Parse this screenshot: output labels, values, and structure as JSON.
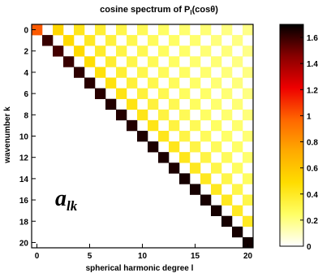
{
  "chart_data": {
    "type": "heatmap",
    "title": "cosine spectrum of P_l(cosθ)",
    "title_parts": {
      "before": "cosine spectrum of P",
      "sub": "l",
      "after": "(cosθ)"
    },
    "xlabel": "spherical harmonic degree l",
    "ylabel": "wavenumber k",
    "annotation": {
      "main": "a",
      "sub": "lk"
    },
    "x_range": [
      0,
      20
    ],
    "y_range": [
      0,
      20
    ],
    "x_ticks": [
      0,
      5,
      10,
      15,
      20
    ],
    "y_ticks": [
      0,
      2,
      4,
      6,
      8,
      10,
      12,
      14,
      16,
      18,
      20
    ],
    "colorbar": {
      "min": 0,
      "max": 1.7,
      "ticks": [
        0,
        0.2,
        0.4,
        0.6,
        0.8,
        1,
        1.2,
        1.4,
        1.6
      ],
      "tick_labels": [
        "0",
        "0.2",
        "0.4",
        "0.6",
        "0.8",
        "1",
        "1.2",
        "1.4",
        "1.6"
      ],
      "colors": [
        "#ffffff",
        "#ffff66",
        "#ffdd00",
        "#ffaa00",
        "#ff6600",
        "#ee0000",
        "#880000",
        "#000000"
      ]
    },
    "cell_rule": "value shown only where k <= l and (l - k) is even; diagonal k = l near max (black)",
    "cells": [
      {
        "l": 0,
        "k": 0,
        "v": 1.0
      },
      {
        "l": 1,
        "k": 1,
        "v": 1.6
      },
      {
        "l": 2,
        "k": 0,
        "v": 0.52
      },
      {
        "l": 2,
        "k": 2,
        "v": 1.58
      },
      {
        "l": 3,
        "k": 1,
        "v": 0.5
      },
      {
        "l": 3,
        "k": 3,
        "v": 1.6
      },
      {
        "l": 4,
        "k": 0,
        "v": 0.42
      },
      {
        "l": 4,
        "k": 2,
        "v": 0.5
      },
      {
        "l": 4,
        "k": 4,
        "v": 1.62
      },
      {
        "l": 5,
        "k": 1,
        "v": 0.4
      },
      {
        "l": 5,
        "k": 3,
        "v": 0.48
      },
      {
        "l": 5,
        "k": 5,
        "v": 1.63
      },
      {
        "l": 6,
        "k": 0,
        "v": 0.36
      },
      {
        "l": 6,
        "k": 2,
        "v": 0.38
      },
      {
        "l": 6,
        "k": 4,
        "v": 0.46
      },
      {
        "l": 6,
        "k": 6,
        "v": 1.63
      },
      {
        "l": 7,
        "k": 1,
        "v": 0.34
      },
      {
        "l": 7,
        "k": 3,
        "v": 0.37
      },
      {
        "l": 7,
        "k": 5,
        "v": 0.45
      },
      {
        "l": 7,
        "k": 7,
        "v": 1.64
      },
      {
        "l": 8,
        "k": 0,
        "v": 0.31
      },
      {
        "l": 8,
        "k": 2,
        "v": 0.32
      },
      {
        "l": 8,
        "k": 4,
        "v": 0.36
      },
      {
        "l": 8,
        "k": 6,
        "v": 0.44
      },
      {
        "l": 8,
        "k": 8,
        "v": 1.64
      },
      {
        "l": 9,
        "k": 1,
        "v": 0.3
      },
      {
        "l": 9,
        "k": 3,
        "v": 0.31
      },
      {
        "l": 9,
        "k": 5,
        "v": 0.35
      },
      {
        "l": 9,
        "k": 7,
        "v": 0.44
      },
      {
        "l": 9,
        "k": 9,
        "v": 1.64
      },
      {
        "l": 10,
        "k": 0,
        "v": 0.28
      },
      {
        "l": 10,
        "k": 2,
        "v": 0.29
      },
      {
        "l": 10,
        "k": 4,
        "v": 0.3
      },
      {
        "l": 10,
        "k": 6,
        "v": 0.34
      },
      {
        "l": 10,
        "k": 8,
        "v": 0.43
      },
      {
        "l": 10,
        "k": 10,
        "v": 1.65
      },
      {
        "l": 11,
        "k": 1,
        "v": 0.27
      },
      {
        "l": 11,
        "k": 3,
        "v": 0.28
      },
      {
        "l": 11,
        "k": 5,
        "v": 0.3
      },
      {
        "l": 11,
        "k": 7,
        "v": 0.34
      },
      {
        "l": 11,
        "k": 9,
        "v": 0.43
      },
      {
        "l": 11,
        "k": 11,
        "v": 1.65
      },
      {
        "l": 12,
        "k": 0,
        "v": 0.25
      },
      {
        "l": 12,
        "k": 2,
        "v": 0.26
      },
      {
        "l": 12,
        "k": 4,
        "v": 0.27
      },
      {
        "l": 12,
        "k": 6,
        "v": 0.29
      },
      {
        "l": 12,
        "k": 8,
        "v": 0.33
      },
      {
        "l": 12,
        "k": 10,
        "v": 0.42
      },
      {
        "l": 12,
        "k": 12,
        "v": 1.65
      },
      {
        "l": 13,
        "k": 1,
        "v": 0.25
      },
      {
        "l": 13,
        "k": 3,
        "v": 0.25
      },
      {
        "l": 13,
        "k": 5,
        "v": 0.27
      },
      {
        "l": 13,
        "k": 7,
        "v": 0.29
      },
      {
        "l": 13,
        "k": 9,
        "v": 0.33
      },
      {
        "l": 13,
        "k": 11,
        "v": 0.42
      },
      {
        "l": 13,
        "k": 13,
        "v": 1.65
      },
      {
        "l": 14,
        "k": 0,
        "v": 0.23
      },
      {
        "l": 14,
        "k": 2,
        "v": 0.24
      },
      {
        "l": 14,
        "k": 4,
        "v": 0.25
      },
      {
        "l": 14,
        "k": 6,
        "v": 0.26
      },
      {
        "l": 14,
        "k": 8,
        "v": 0.28
      },
      {
        "l": 14,
        "k": 10,
        "v": 0.32
      },
      {
        "l": 14,
        "k": 12,
        "v": 0.42
      },
      {
        "l": 14,
        "k": 14,
        "v": 1.66
      },
      {
        "l": 15,
        "k": 1,
        "v": 0.23
      },
      {
        "l": 15,
        "k": 3,
        "v": 0.23
      },
      {
        "l": 15,
        "k": 5,
        "v": 0.24
      },
      {
        "l": 15,
        "k": 7,
        "v": 0.26
      },
      {
        "l": 15,
        "k": 9,
        "v": 0.28
      },
      {
        "l": 15,
        "k": 11,
        "v": 0.32
      },
      {
        "l": 15,
        "k": 13,
        "v": 0.41
      },
      {
        "l": 15,
        "k": 15,
        "v": 1.66
      },
      {
        "l": 16,
        "k": 0,
        "v": 0.22
      },
      {
        "l": 16,
        "k": 2,
        "v": 0.22
      },
      {
        "l": 16,
        "k": 4,
        "v": 0.23
      },
      {
        "l": 16,
        "k": 6,
        "v": 0.24
      },
      {
        "l": 16,
        "k": 8,
        "v": 0.25
      },
      {
        "l": 16,
        "k": 10,
        "v": 0.27
      },
      {
        "l": 16,
        "k": 12,
        "v": 0.32
      },
      {
        "l": 16,
        "k": 14,
        "v": 0.41
      },
      {
        "l": 16,
        "k": 16,
        "v": 1.66
      },
      {
        "l": 17,
        "k": 1,
        "v": 0.21
      },
      {
        "l": 17,
        "k": 3,
        "v": 0.22
      },
      {
        "l": 17,
        "k": 5,
        "v": 0.22
      },
      {
        "l": 17,
        "k": 7,
        "v": 0.23
      },
      {
        "l": 17,
        "k": 9,
        "v": 0.25
      },
      {
        "l": 17,
        "k": 11,
        "v": 0.27
      },
      {
        "l": 17,
        "k": 13,
        "v": 0.31
      },
      {
        "l": 17,
        "k": 15,
        "v": 0.41
      },
      {
        "l": 17,
        "k": 17,
        "v": 1.66
      },
      {
        "l": 18,
        "k": 0,
        "v": 0.2
      },
      {
        "l": 18,
        "k": 2,
        "v": 0.21
      },
      {
        "l": 18,
        "k": 4,
        "v": 0.21
      },
      {
        "l": 18,
        "k": 6,
        "v": 0.22
      },
      {
        "l": 18,
        "k": 8,
        "v": 0.23
      },
      {
        "l": 18,
        "k": 10,
        "v": 0.24
      },
      {
        "l": 18,
        "k": 12,
        "v": 0.27
      },
      {
        "l": 18,
        "k": 14,
        "v": 0.31
      },
      {
        "l": 18,
        "k": 16,
        "v": 0.41
      },
      {
        "l": 18,
        "k": 18,
        "v": 1.66
      },
      {
        "l": 19,
        "k": 1,
        "v": 0.2
      },
      {
        "l": 19,
        "k": 3,
        "v": 0.2
      },
      {
        "l": 19,
        "k": 5,
        "v": 0.21
      },
      {
        "l": 19,
        "k": 7,
        "v": 0.22
      },
      {
        "l": 19,
        "k": 9,
        "v": 0.23
      },
      {
        "l": 19,
        "k": 11,
        "v": 0.24
      },
      {
        "l": 19,
        "k": 13,
        "v": 0.26
      },
      {
        "l": 19,
        "k": 15,
        "v": 0.31
      },
      {
        "l": 19,
        "k": 17,
        "v": 0.4
      },
      {
        "l": 19,
        "k": 19,
        "v": 1.66
      },
      {
        "l": 20,
        "k": 0,
        "v": 0.19
      },
      {
        "l": 20,
        "k": 2,
        "v": 0.19
      },
      {
        "l": 20,
        "k": 4,
        "v": 0.2
      },
      {
        "l": 20,
        "k": 6,
        "v": 0.2
      },
      {
        "l": 20,
        "k": 8,
        "v": 0.21
      },
      {
        "l": 20,
        "k": 10,
        "v": 0.22
      },
      {
        "l": 20,
        "k": 12,
        "v": 0.23
      },
      {
        "l": 20,
        "k": 14,
        "v": 0.26
      },
      {
        "l": 20,
        "k": 16,
        "v": 0.31
      },
      {
        "l": 20,
        "k": 18,
        "v": 0.4
      },
      {
        "l": 20,
        "k": 20,
        "v": 1.67
      }
    ]
  }
}
